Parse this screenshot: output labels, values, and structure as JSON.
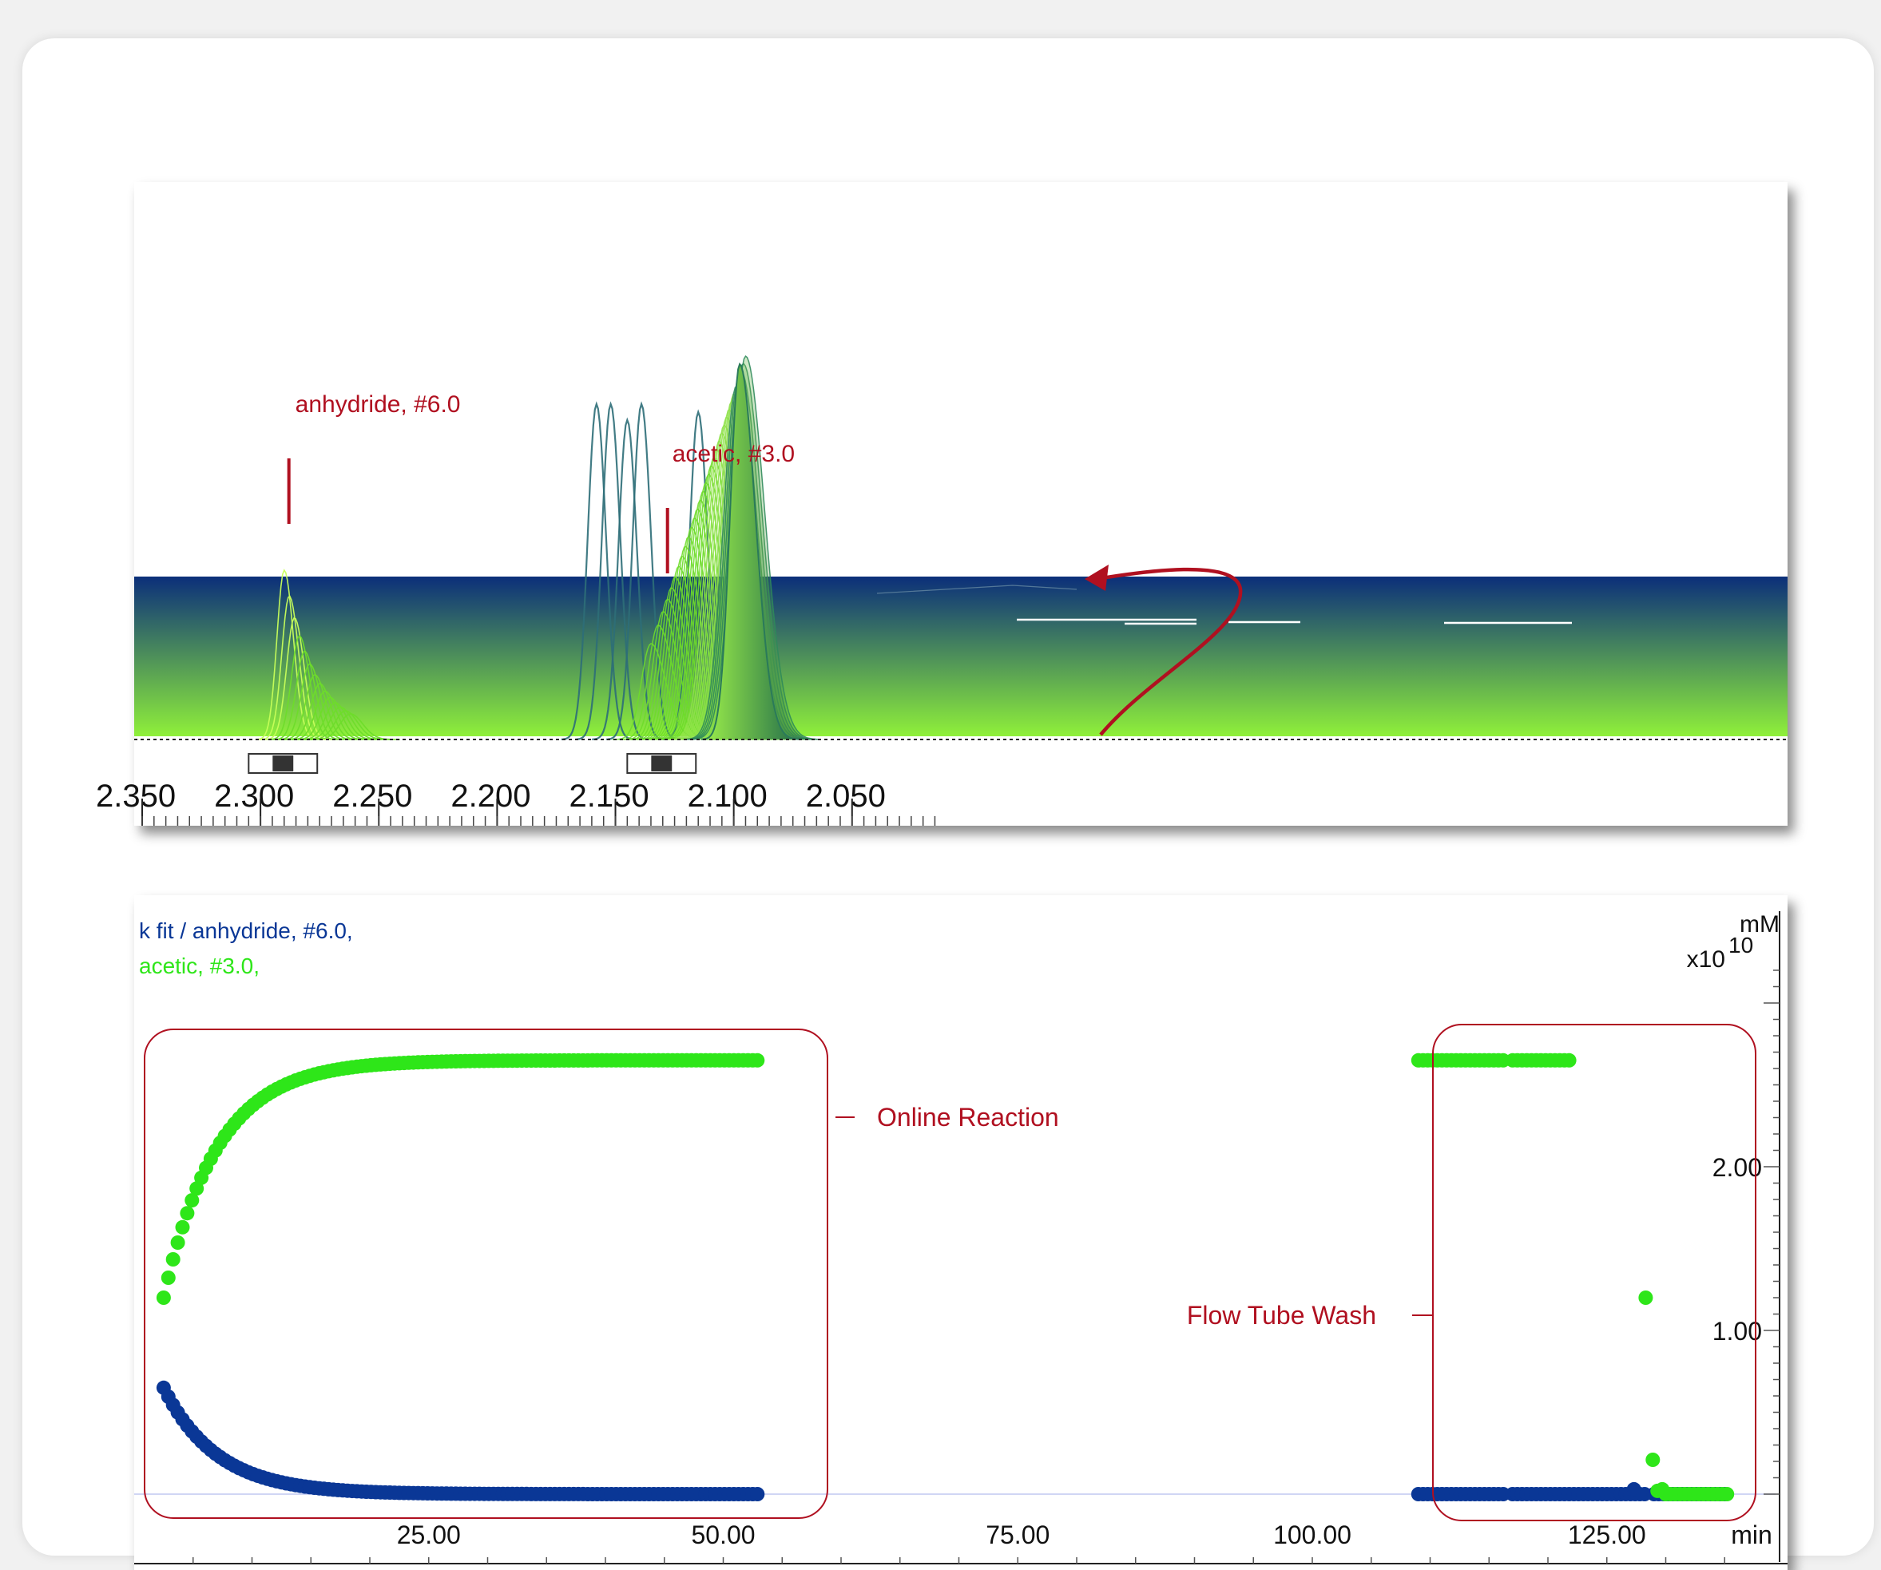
{
  "colors": {
    "anhydride": "#0a3796",
    "acetic": "#2ee619",
    "annotation": "#b01020",
    "spectrum_line": "#6edc2a",
    "reference_line": "#2e6e78",
    "band_top": "#0b2f7a",
    "band_bottom": "#8ff03a"
  },
  "chart_data": [
    {
      "type": "line",
      "xlim": [
        2.36,
        2.01
      ],
      "x_reversed": true,
      "ticks": [
        "2.350",
        "2.300",
        "2.250",
        "2.200",
        "2.150",
        "2.100",
        "2.050"
      ],
      "annotations": [
        {
          "label": "anhydride, #6.0",
          "x": 2.288
        },
        {
          "label": "acetic, #3.0",
          "x": 2.128
        }
      ],
      "integration_regions": [
        {
          "from": 2.305,
          "to": 2.276
        },
        {
          "from": 2.145,
          "to": 2.116
        }
      ],
      "peaks": {
        "anhydride_region": {
          "x_start": 2.29,
          "x_end": 2.262,
          "count": 14
        },
        "acetic_region": {
          "x_start": 2.135,
          "x_end": 2.095,
          "count": 32
        },
        "reference_peaks_x": [
          2.158,
          2.152,
          2.145,
          2.139,
          2.115
        ]
      }
    },
    {
      "type": "scatter",
      "xlim": [
        0,
        140
      ],
      "ylim": [
        -0.2,
        3.3
      ],
      "x_unit": "min",
      "y_unit": "mM",
      "y_multiplier": "x10",
      "y_multiplier_exp": "10",
      "x_ticks": [
        "25.00",
        "50.00",
        "75.00",
        "100.00",
        "125.00"
      ],
      "y_ticks": [
        "2.00",
        "1.00"
      ],
      "legend": [
        {
          "label": "k fit / anhydride, #6.0,",
          "color": "#0a3796"
        },
        {
          "label": "acetic, #3.0,",
          "color": "#2ee619"
        }
      ],
      "series": [
        {
          "name": "anhydride, #6.0",
          "segments": [
            {
              "kind": "decay",
              "x_start": 2.5,
              "x_end": 53,
              "y0": 0.65,
              "k": 0.22,
              "step": 0.4
            },
            {
              "kind": "flat",
              "x_start": 109,
              "x_end": 116.5,
              "y": 0.0,
              "step": 0.4
            },
            {
              "kind": "flat",
              "x_start": 117,
              "x_end": 128.5,
              "y": 0.0,
              "step": 0.4
            },
            {
              "kind": "flat",
              "x_start": 129,
              "x_end": 135.3,
              "y": 0.0,
              "step": 0.4
            }
          ],
          "points": [
            [
              127.3,
              0.03
            ]
          ]
        },
        {
          "name": "acetic, #3.0",
          "segments": [
            {
              "kind": "rise",
              "x_start": 2.5,
              "x_end": 53,
              "y0": 1.2,
              "yinf": 2.65,
              "k": 0.22,
              "step": 0.4
            },
            {
              "kind": "flat",
              "x_start": 109,
              "x_end": 116.5,
              "y": 2.65,
              "step": 0.4
            },
            {
              "kind": "flat",
              "x_start": 117,
              "x_end": 121.8,
              "y": 2.65,
              "step": 0.4
            },
            {
              "kind": "flat",
              "x_start": 130,
              "x_end": 135.3,
              "y": 0.0,
              "step": 0.4
            }
          ],
          "points": [
            [
              128.3,
              1.2
            ],
            [
              128.9,
              0.21
            ],
            [
              129.3,
              0.02
            ],
            [
              129.7,
              0.03
            ]
          ]
        }
      ],
      "annotations": [
        {
          "label": "Online Reaction"
        },
        {
          "label": "Flow Tube Wash"
        }
      ]
    }
  ]
}
